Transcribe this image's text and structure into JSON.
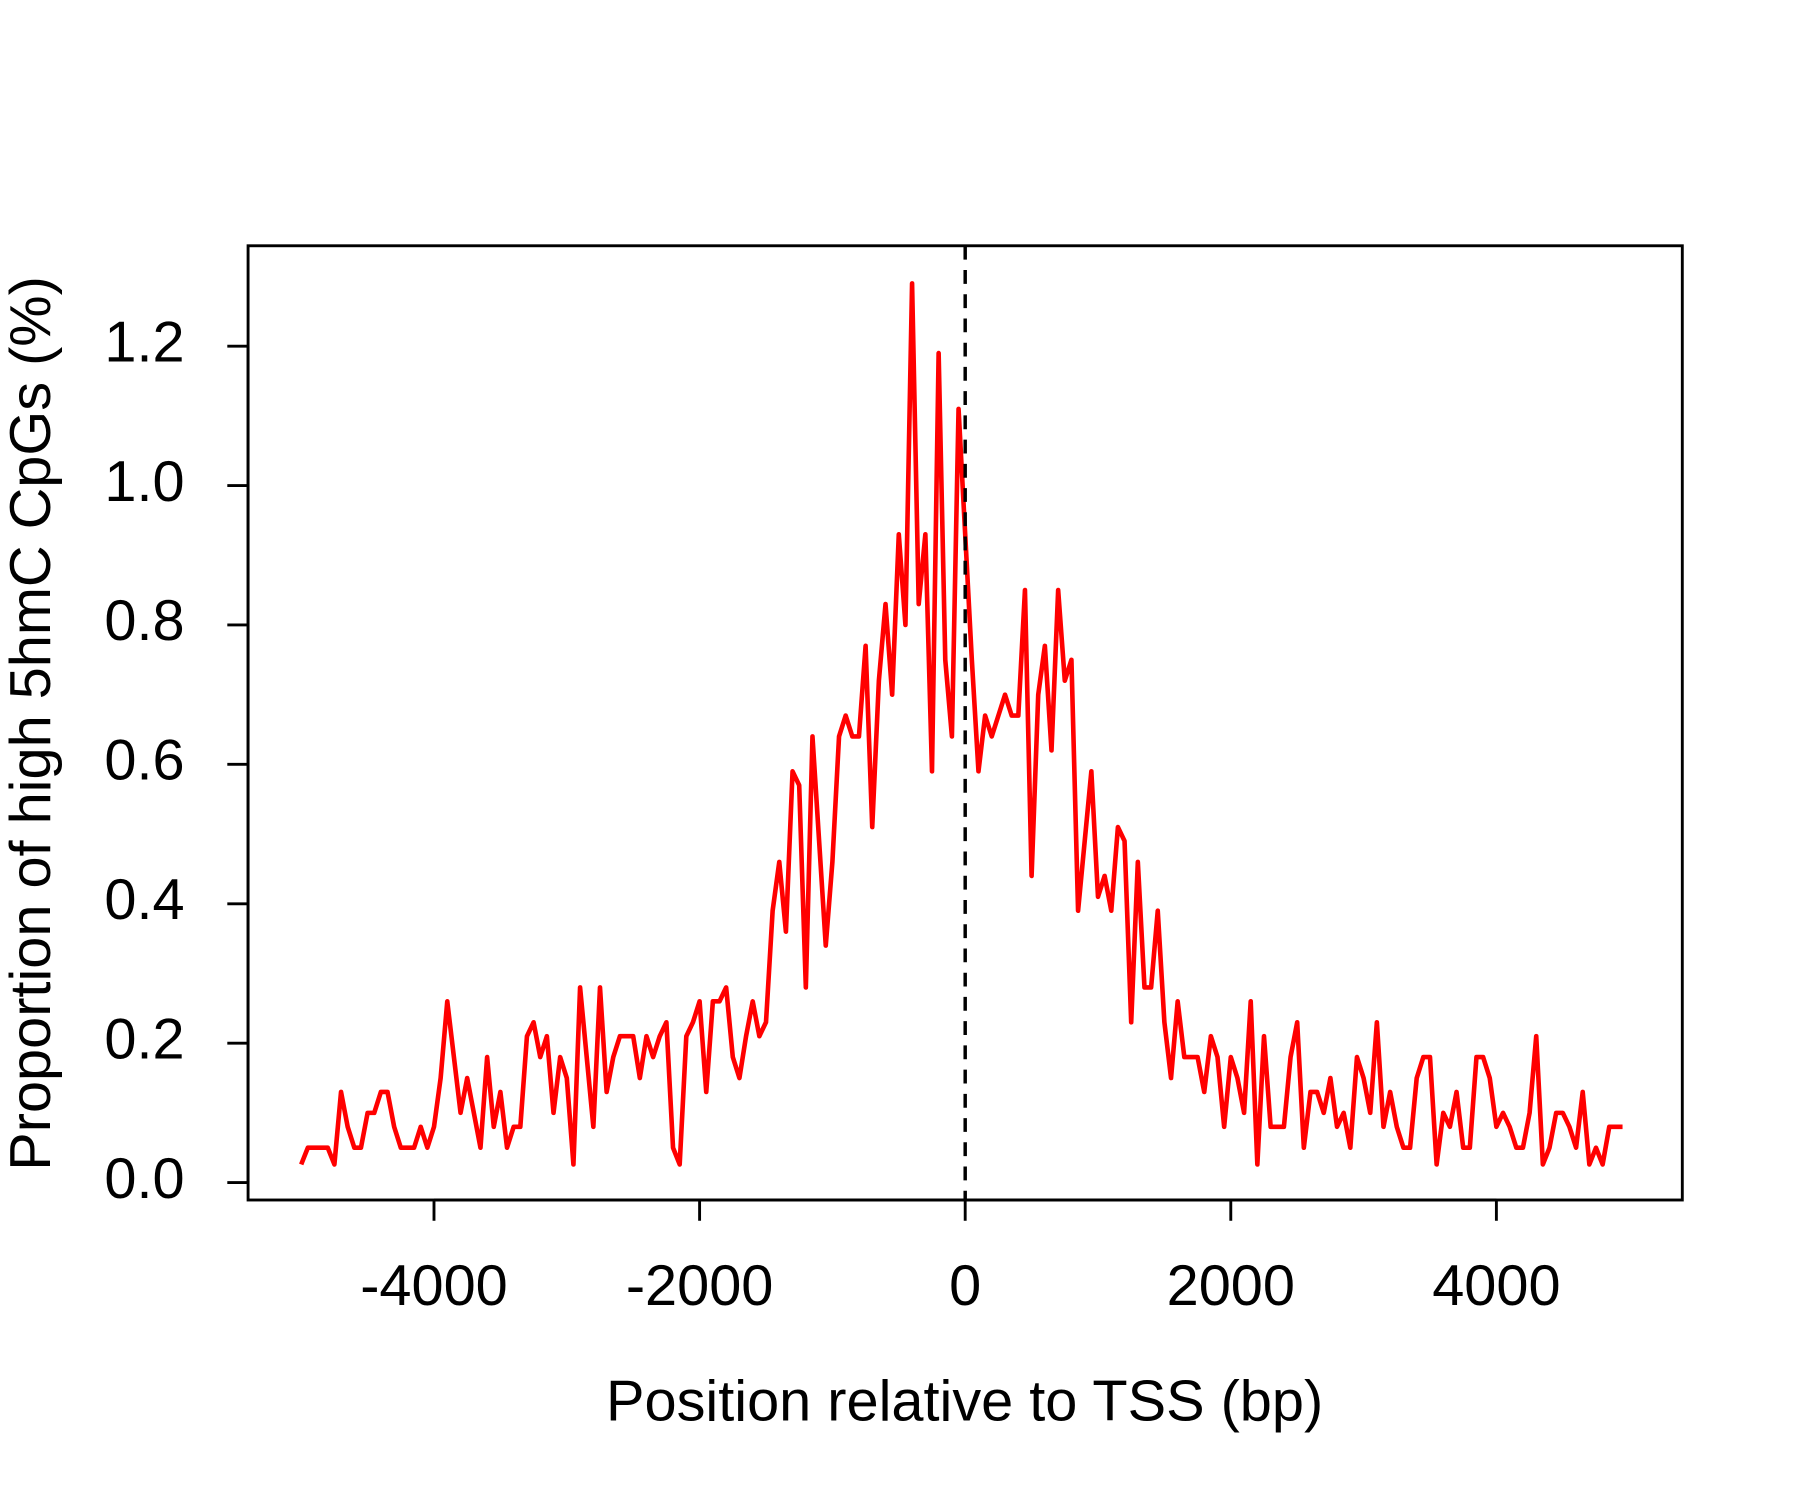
{
  "chart_data": {
    "type": "line",
    "xlabel": "Position relative to TSS (bp)",
    "ylabel": "Proportion of high 5hmC CpGs (%)",
    "x": [
      -5000,
      -4950,
      -4900,
      -4850,
      -4800,
      -4750,
      -4700,
      -4650,
      -4600,
      -4550,
      -4500,
      -4450,
      -4400,
      -4350,
      -4300,
      -4250,
      -4200,
      -4150,
      -4100,
      -4050,
      -4000,
      -3950,
      -3900,
      -3850,
      -3800,
      -3750,
      -3700,
      -3650,
      -3600,
      -3550,
      -3500,
      -3450,
      -3400,
      -3350,
      -3300,
      -3250,
      -3200,
      -3150,
      -3100,
      -3050,
      -3000,
      -2950,
      -2900,
      -2850,
      -2800,
      -2750,
      -2700,
      -2650,
      -2600,
      -2550,
      -2500,
      -2450,
      -2400,
      -2350,
      -2300,
      -2250,
      -2200,
      -2150,
      -2100,
      -2050,
      -2000,
      -1950,
      -1900,
      -1850,
      -1800,
      -1750,
      -1700,
      -1650,
      -1600,
      -1550,
      -1500,
      -1450,
      -1400,
      -1350,
      -1300,
      -1250,
      -1200,
      -1150,
      -1100,
      -1050,
      -1000,
      -950,
      -900,
      -850,
      -800,
      -750,
      -700,
      -650,
      -600,
      -550,
      -500,
      -450,
      -400,
      -350,
      -300,
      -250,
      -200,
      -150,
      -100,
      -50,
      0,
      50,
      100,
      150,
      200,
      250,
      300,
      350,
      400,
      450,
      500,
      550,
      600,
      650,
      700,
      750,
      800,
      850,
      900,
      950,
      1000,
      1050,
      1100,
      1150,
      1200,
      1250,
      1300,
      1350,
      1400,
      1450,
      1500,
      1550,
      1600,
      1650,
      1700,
      1750,
      1800,
      1850,
      1900,
      1950,
      2000,
      2050,
      2100,
      2150,
      2200,
      2250,
      2300,
      2350,
      2400,
      2450,
      2500,
      2550,
      2600,
      2650,
      2700,
      2750,
      2800,
      2850,
      2900,
      2950,
      3000,
      3050,
      3100,
      3150,
      3200,
      3250,
      3300,
      3350,
      3400,
      3450,
      3500,
      3550,
      3600,
      3650,
      3700,
      3750,
      3800,
      3850,
      3900,
      3950,
      4000,
      4050,
      4100,
      4150,
      4200,
      4250,
      4300,
      4350,
      4400,
      4450,
      4500,
      4550,
      4600,
      4650,
      4700,
      4750,
      4800,
      4850,
      4900,
      4950
    ],
    "series": [
      {
        "color": "#ff0000",
        "values": [
          0.026,
          0.05,
          0.05,
          0.05,
          0.05,
          0.026,
          0.13,
          0.08,
          0.05,
          0.05,
          0.1,
          0.1,
          0.13,
          0.13,
          0.08,
          0.05,
          0.05,
          0.05,
          0.08,
          0.05,
          0.08,
          0.15,
          0.26,
          0.18,
          0.1,
          0.15,
          0.1,
          0.05,
          0.18,
          0.08,
          0.13,
          0.05,
          0.08,
          0.08,
          0.21,
          0.23,
          0.18,
          0.21,
          0.1,
          0.18,
          0.15,
          0.026,
          0.28,
          0.18,
          0.08,
          0.28,
          0.13,
          0.18,
          0.21,
          0.21,
          0.21,
          0.15,
          0.21,
          0.18,
          0.21,
          0.23,
          0.05,
          0.026,
          0.21,
          0.23,
          0.26,
          0.13,
          0.26,
          0.26,
          0.28,
          0.18,
          0.15,
          0.21,
          0.26,
          0.21,
          0.23,
          0.39,
          0.46,
          0.36,
          0.59,
          0.57,
          0.28,
          0.64,
          0.49,
          0.34,
          0.46,
          0.64,
          0.67,
          0.64,
          0.64,
          0.77,
          0.51,
          0.72,
          0.83,
          0.7,
          0.93,
          0.8,
          1.29,
          0.83,
          0.93,
          0.59,
          1.19,
          0.75,
          0.64,
          1.11,
          0.93,
          0.75,
          0.59,
          0.67,
          0.64,
          0.67,
          0.7,
          0.67,
          0.67,
          0.85,
          0.44,
          0.7,
          0.77,
          0.62,
          0.85,
          0.72,
          0.75,
          0.39,
          0.49,
          0.59,
          0.41,
          0.44,
          0.39,
          0.51,
          0.49,
          0.23,
          0.46,
          0.28,
          0.28,
          0.39,
          0.23,
          0.15,
          0.26,
          0.18,
          0.18,
          0.18,
          0.13,
          0.21,
          0.18,
          0.08,
          0.18,
          0.15,
          0.1,
          0.26,
          0.026,
          0.21,
          0.08,
          0.08,
          0.08,
          0.18,
          0.23,
          0.05,
          0.13,
          0.13,
          0.1,
          0.15,
          0.08,
          0.1,
          0.05,
          0.18,
          0.15,
          0.1,
          0.23,
          0.08,
          0.13,
          0.08,
          0.05,
          0.05,
          0.15,
          0.18,
          0.18,
          0.026,
          0.1,
          0.08,
          0.13,
          0.05,
          0.05,
          0.18,
          0.18,
          0.15,
          0.08,
          0.1,
          0.08,
          0.05,
          0.05,
          0.1,
          0.21,
          0.026,
          0.05,
          0.1,
          0.1,
          0.08,
          0.05,
          0.13,
          0.026,
          0.05,
          0.026,
          0.08,
          0.08,
          0.08
        ]
      }
    ],
    "xlim": [
      -5400,
      5400
    ],
    "xticks": [
      -4000,
      -2000,
      0,
      2000,
      4000
    ],
    "ylim": [
      -0.025,
      1.344
    ],
    "yticks": [
      {
        "value": 0,
        "label": "0.0"
      },
      0.2,
      0.4,
      0.6,
      0.8,
      {
        "value": 1,
        "label": "1.0"
      },
      1.2
    ],
    "vline": 0
  }
}
